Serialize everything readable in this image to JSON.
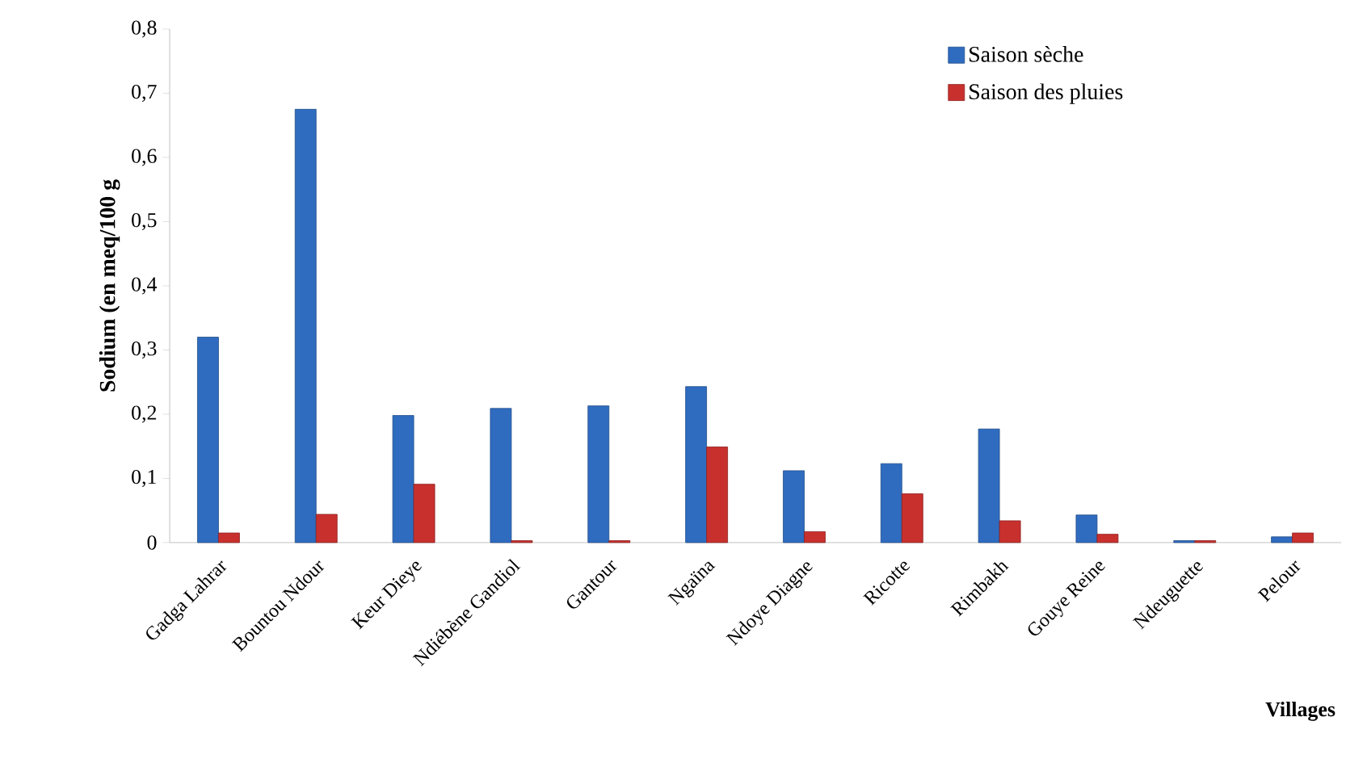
{
  "chart_data": {
    "type": "bar",
    "ylabel": "Sodium (en meq/100 g",
    "xlabel": "Villages",
    "categories": [
      "Gadga Lahrar",
      "Bountou Ndour",
      "Keur Dieye",
      "Ndiébène Gandiol",
      "Gantour",
      "Ngaïna",
      "Ndoye Diagne",
      "Ricotte",
      "Rimbakh",
      "Gouye Reine",
      "Ndeuguette",
      "Pelour"
    ],
    "series": [
      {
        "name": "Saison sèche",
        "color": "#2f6cc0",
        "values": [
          0.32,
          0.675,
          0.198,
          0.209,
          0.213,
          0.243,
          0.112,
          0.123,
          0.177,
          0.043,
          0.003,
          0.009
        ]
      },
      {
        "name": "Saison des pluies",
        "color": "#c8302e",
        "values": [
          0.015,
          0.044,
          0.091,
          0.003,
          0.003,
          0.149,
          0.017,
          0.076,
          0.034,
          0.013,
          0.003,
          0.015
        ]
      }
    ],
    "ylim": [
      0,
      0.8
    ],
    "yticks": [
      0,
      {
        "value": 0.1,
        "label": "0,1"
      },
      {
        "value": 0.2,
        "label": "0,2"
      },
      {
        "value": 0.3,
        "label": "0,3"
      },
      {
        "value": 0.4,
        "label": "0,4"
      },
      {
        "value": 0.5,
        "label": "0,5"
      },
      {
        "value": 0.6,
        "label": "0,6"
      },
      {
        "value": 0.7,
        "label": "0,7"
      },
      {
        "value": 0.8,
        "label": "0,8"
      }
    ],
    "legend": "top right",
    "grid": false
  }
}
